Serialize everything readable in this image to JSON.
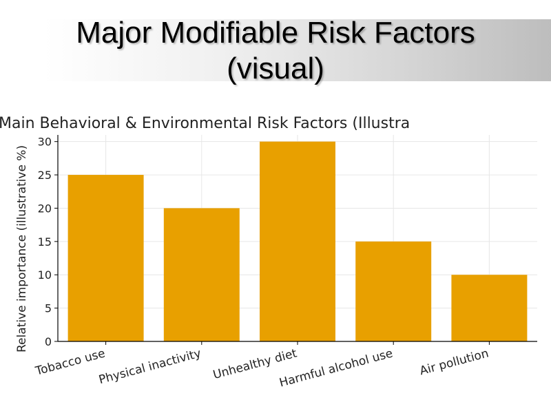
{
  "slide": {
    "title_line1": "Major Modifiable Risk Factors",
    "title_line2": "(visual)"
  },
  "colors": {
    "bar": "#E8A000",
    "grid": "#e6e6e6",
    "axis": "#000000"
  },
  "chart_data": {
    "type": "bar",
    "title": "Main Behavioral & Environmental Risk Factors (Illustra",
    "xlabel": "",
    "ylabel": "Relative importance (illustrative %)",
    "categories": [
      "Tobacco use",
      "Physical inactivity",
      "Unhealthy diet",
      "Harmful alcohol use",
      "Air pollution"
    ],
    "values": [
      25,
      20,
      30,
      15,
      10
    ],
    "ylim": [
      0,
      31
    ],
    "yticks": [
      0,
      5,
      10,
      15,
      20,
      25,
      30
    ],
    "grid": true,
    "legend": "none"
  }
}
